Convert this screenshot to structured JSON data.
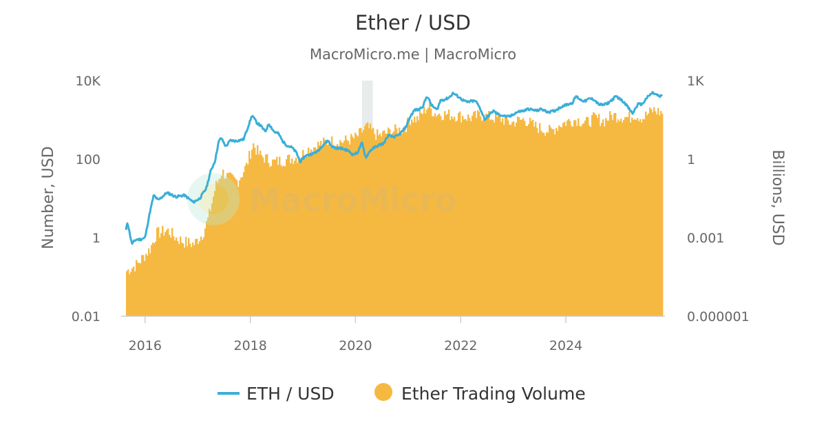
{
  "chart_data": {
    "type": "line",
    "title": "Ether / USD",
    "subtitle": "MacroMicro.me | MacroMicro",
    "watermark": "MacroMicro",
    "x_ticks": [
      "2016",
      "2018",
      "2020",
      "2022",
      "2024"
    ],
    "x_range": [
      "2015-08-07",
      "2025-10-31"
    ],
    "y_left": {
      "label": "Number, USD",
      "scale": "log",
      "range": [
        0.01,
        10000
      ],
      "ticks": [
        "0.01",
        "1",
        "100",
        "10K"
      ]
    },
    "y_right": {
      "label": "Billions, USD",
      "scale": "log",
      "range": [
        1e-06,
        1000
      ],
      "ticks": [
        "0.000001",
        "0.001",
        "1",
        "1K"
      ]
    },
    "highlight_period": [
      "2020-02-15",
      "2020-05-01"
    ],
    "legend": {
      "position": "bottom",
      "items": [
        "ETH / USD",
        "Ether Trading Volume"
      ]
    },
    "colors": {
      "price": "#3aaed8",
      "volume": "#f5b942",
      "highlight": "#e8ecec",
      "axis": "#cccccc"
    },
    "series": [
      {
        "name": "ETH / USD",
        "axis": "left",
        "x": [
          "2015-08-07",
          "2015-09-01",
          "2015-10-01",
          "2015-11-01",
          "2015-12-01",
          "2016-01-01",
          "2016-02-01",
          "2016-03-01",
          "2016-04-01",
          "2016-06-01",
          "2016-08-01",
          "2016-10-01",
          "2016-12-01",
          "2017-01-15",
          "2017-03-01",
          "2017-04-01",
          "2017-05-01",
          "2017-05-25",
          "2017-06-12",
          "2017-07-15",
          "2017-08-15",
          "2017-09-15",
          "2017-10-15",
          "2017-11-15",
          "2018-01-13",
          "2018-02-15",
          "2018-03-15",
          "2018-04-15",
          "2018-05-10",
          "2018-06-15",
          "2018-07-15",
          "2018-08-15",
          "2018-09-15",
          "2018-10-15",
          "2018-11-15",
          "2018-12-15",
          "2019-01-15",
          "2019-02-15",
          "2019-03-15",
          "2019-04-15",
          "2019-05-15",
          "2019-06-26",
          "2019-07-15",
          "2019-08-15",
          "2019-09-15",
          "2019-10-15",
          "2019-11-15",
          "2019-12-15",
          "2020-01-15",
          "2020-02-15",
          "2020-03-13",
          "2020-04-15",
          "2020-05-15",
          "2020-06-15",
          "2020-07-15",
          "2020-08-15",
          "2020-09-15",
          "2020-10-15",
          "2020-11-15",
          "2020-12-15",
          "2021-01-15",
          "2021-02-15",
          "2021-03-15",
          "2021-04-15",
          "2021-05-12",
          "2021-06-15",
          "2021-07-20",
          "2021-08-15",
          "2021-09-15",
          "2021-10-15",
          "2021-11-10",
          "2021-12-15",
          "2022-01-15",
          "2022-02-15",
          "2022-03-15",
          "2022-04-15",
          "2022-05-15",
          "2022-06-18",
          "2022-07-15",
          "2022-08-15",
          "2022-09-15",
          "2022-10-15",
          "2022-11-15",
          "2022-12-15",
          "2023-01-15",
          "2023-02-15",
          "2023-03-15",
          "2023-04-15",
          "2023-05-15",
          "2023-06-15",
          "2023-07-15",
          "2023-08-15",
          "2023-09-15",
          "2023-10-15",
          "2023-11-15",
          "2023-12-15",
          "2024-01-15",
          "2024-02-15",
          "2024-03-12",
          "2024-04-15",
          "2024-05-15",
          "2024-06-15",
          "2024-07-15",
          "2024-08-15",
          "2024-09-15",
          "2024-10-15",
          "2024-11-15",
          "2024-12-16",
          "2025-01-15",
          "2025-02-15",
          "2025-03-15",
          "2025-04-09",
          "2025-05-15",
          "2025-06-15",
          "2025-07-15",
          "2025-08-24",
          "2025-09-15",
          "2025-10-15",
          "2025-10-31"
        ],
        "y": [
          0.8,
          2.5,
          0.7,
          0.9,
          0.9,
          1.0,
          4.0,
          12,
          9,
          14,
          11,
          12,
          8,
          10,
          18,
          50,
          90,
          270,
          350,
          210,
          300,
          290,
          300,
          320,
          1300,
          850,
          700,
          500,
          800,
          500,
          450,
          280,
          220,
          200,
          150,
          85,
          120,
          130,
          140,
          160,
          220,
          300,
          220,
          190,
          190,
          180,
          160,
          130,
          145,
          260,
          110,
          170,
          200,
          230,
          250,
          400,
          370,
          380,
          480,
          650,
          1200,
          1800,
          1800,
          2300,
          4100,
          2300,
          1800,
          3200,
          3300,
          3800,
          4800,
          3900,
          3200,
          2800,
          3000,
          3000,
          2000,
          1000,
          1300,
          1700,
          1400,
          1300,
          1200,
          1250,
          1500,
          1650,
          1700,
          1900,
          1800,
          1700,
          1900,
          1650,
          1600,
          1700,
          2000,
          2300,
          2500,
          2700,
          4000,
          3200,
          3000,
          3500,
          3300,
          2500,
          2400,
          2600,
          3200,
          4000,
          3300,
          2700,
          1900,
          1450,
          2500,
          2500,
          3600,
          4900,
          4500,
          3900,
          4100
        ]
      },
      {
        "name": "Ether Trading Volume",
        "axis": "right",
        "x": [
          "2015-08-07",
          "2015-11-01",
          "2016-02-01",
          "2016-03-15",
          "2016-06-01",
          "2016-08-01",
          "2016-10-01",
          "2016-12-01",
          "2017-02-01",
          "2017-03-15",
          "2017-05-01",
          "2017-06-12",
          "2017-08-01",
          "2017-10-01",
          "2017-12-01",
          "2018-01-15",
          "2018-03-01",
          "2018-06-01",
          "2018-09-01",
          "2018-12-01",
          "2019-02-01",
          "2019-05-01",
          "2019-07-01",
          "2019-10-01",
          "2020-01-01",
          "2020-03-13",
          "2020-06-01",
          "2020-09-01",
          "2020-12-01",
          "2021-01-15",
          "2021-03-01",
          "2021-05-12",
          "2021-07-01",
          "2021-09-01",
          "2021-11-10",
          "2022-01-15",
          "2022-03-01",
          "2022-05-15",
          "2022-06-18",
          "2022-08-15",
          "2022-10-15",
          "2022-12-15",
          "2023-01-15",
          "2023-03-15",
          "2023-05-15",
          "2023-07-15",
          "2023-09-15",
          "2023-11-15",
          "2024-01-15",
          "2024-03-12",
          "2024-05-15",
          "2024-07-15",
          "2024-09-15",
          "2024-11-15",
          "2025-01-15",
          "2025-03-15",
          "2025-04-09",
          "2025-06-15",
          "2025-08-24",
          "2025-10-31"
        ],
        "y": [
          5e-05,
          0.0001,
          0.0004,
          0.0015,
          0.002,
          0.001,
          0.0007,
          0.0006,
          0.0015,
          0.007,
          0.1,
          0.35,
          0.2,
          0.15,
          0.6,
          4,
          1.5,
          0.8,
          1.0,
          1.3,
          2.5,
          4,
          5,
          5,
          7,
          18,
          8,
          12,
          15,
          40,
          35,
          110,
          60,
          55,
          50,
          45,
          40,
          50,
          45,
          40,
          35,
          25,
          30,
          35,
          20,
          15,
          12,
          22,
          30,
          35,
          25,
          40,
          30,
          50,
          45,
          40,
          55,
          40,
          80,
          60
        ]
      }
    ]
  }
}
